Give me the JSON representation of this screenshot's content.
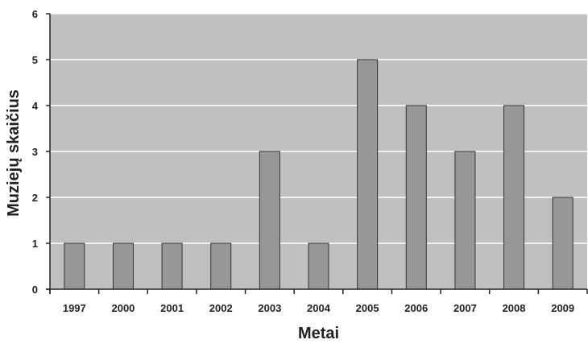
{
  "chart_data": {
    "type": "bar",
    "title": "",
    "xlabel": "Metai",
    "ylabel": "Muziejų skaičius",
    "categories": [
      "1997",
      "2000",
      "2001",
      "2002",
      "2003",
      "2004",
      "2005",
      "2006",
      "2007",
      "2008",
      "2009"
    ],
    "values": [
      1,
      1,
      1,
      1,
      3,
      1,
      5,
      4,
      3,
      4,
      2
    ],
    "ylim": [
      0,
      6
    ],
    "yticks": [
      0,
      1,
      2,
      3,
      4,
      5,
      6
    ],
    "grid": true,
    "legend": "none",
    "colors": {
      "plot_background": "#c0c0c0",
      "bar_fill": "#979797",
      "bar_stroke": "#333333",
      "gridline": "#ffffff",
      "axis": "#222222"
    }
  }
}
